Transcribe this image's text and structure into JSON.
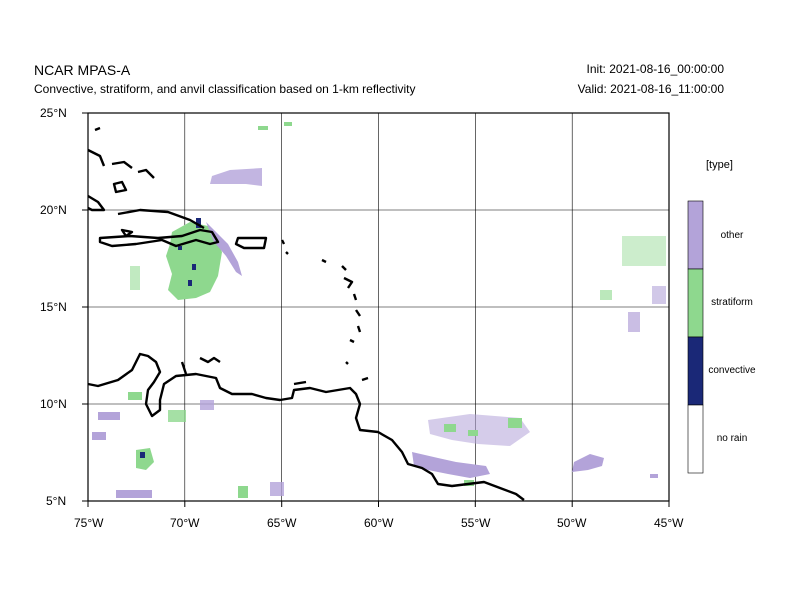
{
  "header": {
    "title": "NCAR MPAS-A",
    "subtitle": "Convective, stratiform, and anvil classification based on 1-km reflectivity",
    "init": "Init: 2021-08-16_00:00:00",
    "valid": "Valid: 2021-08-16_11:00:00"
  },
  "map": {
    "lon_range": [
      -75,
      -45
    ],
    "lat_range": [
      5,
      25
    ],
    "x_ticks": [
      "75°W",
      "70°W",
      "65°W",
      "60°W",
      "55°W",
      "50°W",
      "45°W"
    ],
    "y_ticks": [
      "25°N",
      "20°N",
      "15°N",
      "10°N",
      "5°N"
    ],
    "grid": true
  },
  "legend": {
    "title": "[type]",
    "entries": [
      {
        "label": "other",
        "color": "#b3a3d9"
      },
      {
        "label": "stratiform",
        "color": "#8ed88e"
      },
      {
        "label": "convective",
        "color": "#1a2877"
      },
      {
        "label": "no rain",
        "color": "#ffffff"
      }
    ]
  }
}
